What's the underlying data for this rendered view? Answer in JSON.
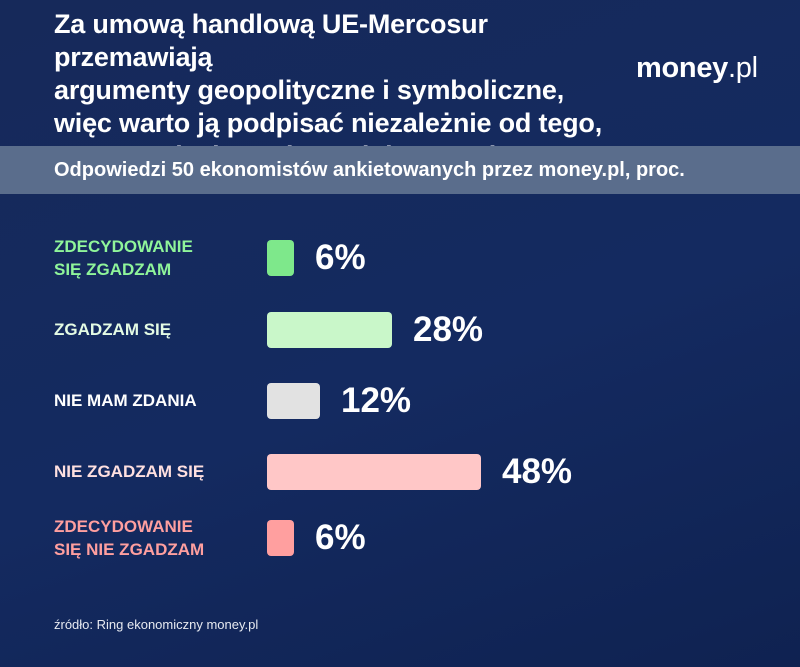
{
  "header": {
    "title": "Za umową handlową UE-Mercosur przemawiają\nargumenty geopolityczne i symboliczne,\nwięc warto ją podpisać niezależnie od tego,\nczy przyniesie UE korzyści gospodarcze",
    "logo_bold": "money",
    "logo_light": ".pl",
    "subtitle": "Odpowiedzi 50 ekonomistów ankietowanych przez money.pl, proc."
  },
  "chart_data": {
    "type": "bar",
    "orientation": "horizontal",
    "categories": [
      "ZDECYDOWANIE SIĘ ZGADZAM",
      "ZGADZAM SIĘ",
      "NIE MAM ZDANIA",
      "NIE ZGADZAM SIĘ",
      "ZDECYDOWANIE SIĘ NIE ZGADZAM"
    ],
    "values": [
      6,
      28,
      12,
      48,
      6
    ],
    "value_labels": [
      "6%",
      "28%",
      "12%",
      "48%",
      "6%"
    ],
    "colors": [
      "#7ee88b",
      "#c9f7c9",
      "#e2e2e2",
      "#ffc7c7",
      "#ff9f9f"
    ],
    "label_colors": [
      "#8ff59a",
      "#e4fbe4",
      "#ffffff",
      "#ffe0e0",
      "#ff9f9f"
    ],
    "unit": "%",
    "grid": false,
    "legend": "none"
  },
  "footer": {
    "source": "źródło: Ring ekonomiczny money.pl"
  }
}
